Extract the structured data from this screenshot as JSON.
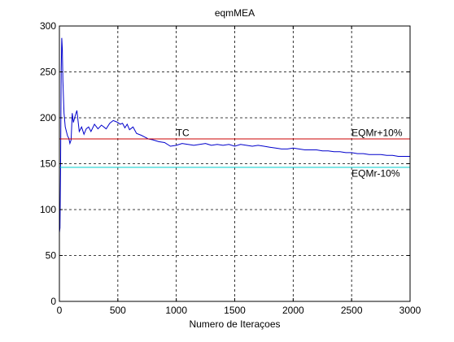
{
  "chart_data": {
    "type": "line",
    "title": "eqmMEA",
    "xlabel": "Numero de Iteraçoes",
    "ylabel": "",
    "xlim": [
      0,
      3000
    ],
    "ylim": [
      0,
      300
    ],
    "grid": true,
    "grid_style": "dashed",
    "x_ticks": [
      0,
      500,
      1000,
      1500,
      2000,
      2500,
      3000
    ],
    "y_ticks": [
      0,
      50,
      100,
      150,
      200,
      250,
      300
    ],
    "x_tick_labels": [
      "0",
      "500",
      "1000",
      "1500",
      "2000",
      "2500",
      "3000"
    ],
    "y_tick_labels": [
      "0",
      "50",
      "100",
      "150",
      "200",
      "250",
      "300"
    ],
    "series": [
      {
        "color": "#0000cc",
        "x": [
          0,
          5,
          10,
          15,
          20,
          25,
          30,
          40,
          50,
          60,
          70,
          80,
          90,
          100,
          110,
          120,
          130,
          150,
          170,
          190,
          210,
          230,
          250,
          270,
          300,
          330,
          360,
          400,
          430,
          460,
          480,
          500,
          520,
          540,
          560,
          580,
          600,
          630,
          660,
          700,
          730,
          760,
          800,
          850,
          900,
          950,
          1000,
          1050,
          1100,
          1150,
          1200,
          1250,
          1300,
          1350,
          1400,
          1450,
          1500,
          1550,
          1600,
          1650,
          1700,
          1750,
          1800,
          1850,
          1900,
          1950,
          2000,
          2050,
          2100,
          2150,
          2200,
          2250,
          2300,
          2350,
          2400,
          2450,
          2500,
          2550,
          2600,
          2650,
          2700,
          2750,
          2800,
          2850,
          2900,
          2950,
          3000
        ],
        "y": [
          75,
          80,
          140,
          250,
          287,
          275,
          240,
          205,
          190,
          185,
          180,
          178,
          172,
          176,
          205,
          195,
          200,
          208,
          185,
          190,
          182,
          188,
          190,
          185,
          193,
          188,
          192,
          188,
          194,
          197,
          196,
          195,
          193,
          194,
          189,
          193,
          187,
          190,
          183,
          181,
          179,
          177,
          176,
          174,
          173,
          169,
          170,
          172,
          171,
          170,
          171,
          172,
          170,
          171,
          170,
          171,
          169,
          171,
          170,
          169,
          170,
          169,
          168,
          167,
          166,
          166,
          167,
          166,
          165,
          165,
          165,
          164,
          164,
          163,
          163,
          162,
          162,
          161,
          161,
          160,
          160,
          160,
          159,
          159,
          158,
          158,
          158
        ]
      },
      {
        "color": "#cc0000",
        "x": [
          0,
          3000
        ],
        "y": [
          177,
          177
        ]
      },
      {
        "color": "#00cccc",
        "x": [
          0,
          3000
        ],
        "y": [
          146,
          146
        ]
      }
    ],
    "annotations": [
      {
        "text": "TC",
        "x": 1000,
        "y": 180
      },
      {
        "text": "EQMr+10%",
        "x": 2500,
        "y": 180
      },
      {
        "text": "EQMr-10%",
        "x": 2500,
        "y": 136
      }
    ]
  }
}
